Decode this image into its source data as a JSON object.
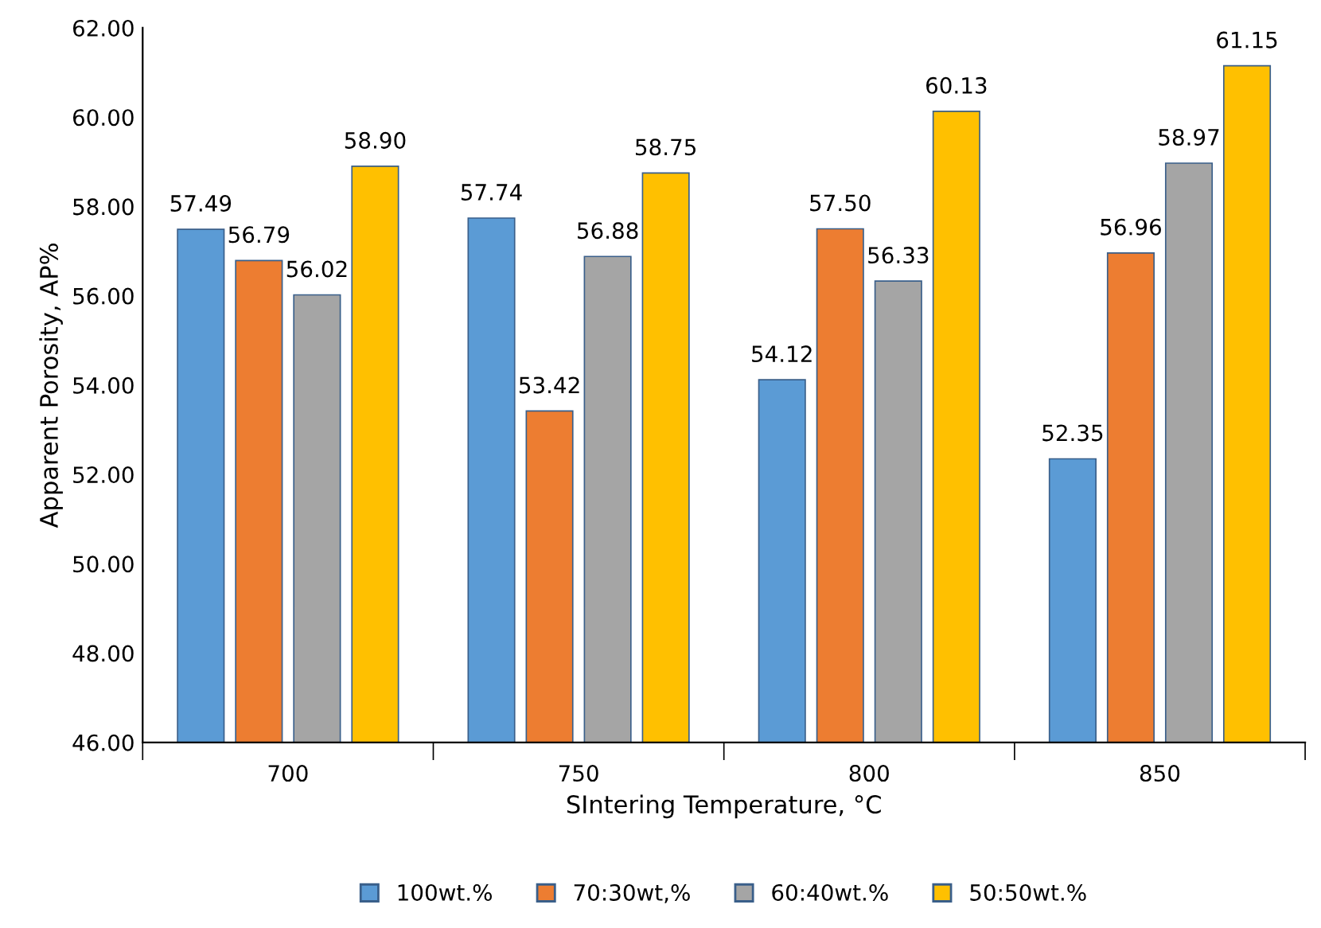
{
  "chart_data": {
    "type": "bar",
    "xlabel": "SIntering Temperature, °C",
    "ylabel": "Apparent Porosity, AP%",
    "categories": [
      "700",
      "750",
      "800",
      "850"
    ],
    "series": [
      {
        "name": "100wt.%",
        "color": "#5b9bd5",
        "values": [
          57.49,
          57.74,
          54.12,
          52.35
        ],
        "value_labels": [
          "57.49",
          "57.74",
          "54.12",
          "52.35"
        ]
      },
      {
        "name": "70:30wt,%",
        "color": "#ed7d31",
        "values": [
          56.79,
          53.42,
          57.5,
          56.96
        ],
        "value_labels": [
          "56.79",
          "53.42",
          "57.50",
          "56.96"
        ]
      },
      {
        "name": "60:40wt.%",
        "color": "#a5a5a5",
        "values": [
          56.02,
          56.88,
          56.33,
          58.97
        ],
        "value_labels": [
          "56.02",
          "56.88",
          "56.33",
          "58.97"
        ]
      },
      {
        "name": "50:50wt.%",
        "color": "#ffc000",
        "values": [
          58.9,
          58.75,
          60.13,
          61.15
        ],
        "value_labels": [
          "58.90",
          "58.75",
          "60.13",
          "61.15"
        ]
      }
    ],
    "ylim": [
      46,
      62
    ],
    "yticks": [
      {
        "value": 46,
        "label": "46.00"
      },
      {
        "value": 48,
        "label": "48.00"
      },
      {
        "value": 50,
        "label": "50.00"
      },
      {
        "value": 52,
        "label": "52.00"
      },
      {
        "value": 54,
        "label": "54.00"
      },
      {
        "value": 56,
        "label": "56.00"
      },
      {
        "value": 58,
        "label": "58.00"
      },
      {
        "value": 60,
        "label": "60.00"
      },
      {
        "value": 62,
        "label": "62.00"
      }
    ],
    "grid": false,
    "legend": "bottom"
  }
}
